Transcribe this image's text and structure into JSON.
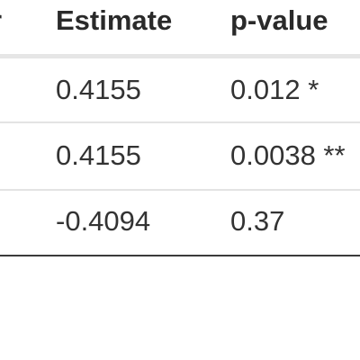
{
  "table": {
    "columns": [
      {
        "key": "partial",
        "label": "r"
      },
      {
        "key": "estimate",
        "label": "Estimate"
      },
      {
        "key": "pvalue",
        "label": "p-value"
      }
    ],
    "rows": [
      {
        "estimate": "0.4155",
        "pvalue": "0.012 *"
      },
      {
        "estimate": "0.4155",
        "pvalue": "0.0038 **"
      },
      {
        "estimate": "-0.4094",
        "pvalue": "0.37"
      }
    ]
  }
}
